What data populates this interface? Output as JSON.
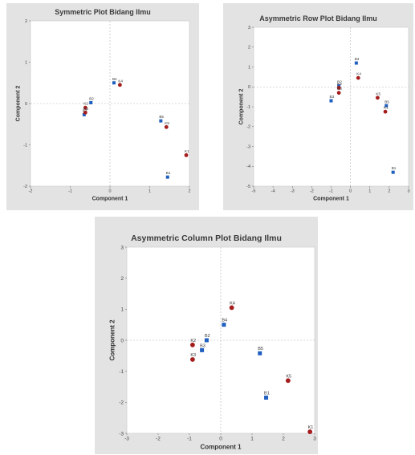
{
  "colors": {
    "row_marker": "#1f5fbf",
    "col_marker": "#a51c1c",
    "panel_bg": "#e3e3e3",
    "plot_bg": "#ffffff",
    "refline": "#b5b5b5"
  },
  "chart_data": [
    {
      "type": "scatter",
      "title": "Symmetric Plot Bidang Ilmu",
      "xlabel": "Component 1",
      "ylabel": "Component 2",
      "xlim": [
        -2,
        2
      ],
      "ylim": [
        -2,
        2
      ],
      "xticks": [
        "-2",
        "-1",
        "0",
        "1",
        "2"
      ],
      "yticks": [
        "-2",
        "-1",
        "0",
        "1",
        "2"
      ],
      "grid": false,
      "series": [
        {
          "marker": "square",
          "color": "#1f5fbf",
          "points": [
            {
              "label": "B1",
              "x": 1.45,
              "y": -1.78
            },
            {
              "label": "B2",
              "x": -0.48,
              "y": 0.02
            },
            {
              "label": "B3",
              "x": -0.65,
              "y": -0.27
            },
            {
              "label": "B4",
              "x": 0.1,
              "y": 0.5
            },
            {
              "label": "B5",
              "x": 1.28,
              "y": -0.42
            }
          ]
        },
        {
          "marker": "circle",
          "color": "#a51c1c",
          "points": [
            {
              "label": "K1",
              "x": 1.92,
              "y": -1.25
            },
            {
              "label": "K2",
              "x": -0.62,
              "y": -0.1
            },
            {
              "label": "K3",
              "x": -0.62,
              "y": -0.22
            },
            {
              "label": "K4",
              "x": 0.25,
              "y": 0.45
            },
            {
              "label": "K5",
              "x": 1.42,
              "y": -0.57
            }
          ]
        }
      ]
    },
    {
      "type": "scatter",
      "title": "Asymmetric Row Plot Bidang Ilmu",
      "xlabel": "Component 1",
      "ylabel": "Component 2",
      "xlim": [
        -5,
        3
      ],
      "ylim": [
        -5,
        3
      ],
      "xticks": [
        "-5",
        "-4",
        "-3",
        "-2",
        "-1",
        "0",
        "1",
        "2",
        "3"
      ],
      "yticks": [
        "-5",
        "-4",
        "-3",
        "-2",
        "-1",
        "0",
        "1",
        "2",
        "3"
      ],
      "grid": false,
      "series": [
        {
          "marker": "square",
          "color": "#1f5fbf",
          "points": [
            {
              "label": "B1",
              "x": 2.2,
              "y": -4.3
            },
            {
              "label": "B2",
              "x": -0.6,
              "y": 0.05
            },
            {
              "label": "B3",
              "x": -1.0,
              "y": -0.7
            },
            {
              "label": "B4",
              "x": 0.3,
              "y": 1.2
            },
            {
              "label": "B5",
              "x": 1.85,
              "y": -0.95
            }
          ]
        },
        {
          "marker": "circle",
          "color": "#a51c1c",
          "points": [
            {
              "label": "K1",
              "x": 1.8,
              "y": -1.25
            },
            {
              "label": "K2",
              "x": -0.6,
              "y": -0.05
            },
            {
              "label": "K3",
              "x": -0.6,
              "y": -0.3
            },
            {
              "label": "K4",
              "x": 0.4,
              "y": 0.45
            },
            {
              "label": "K5",
              "x": 1.4,
              "y": -0.55
            }
          ]
        }
      ]
    },
    {
      "type": "scatter",
      "title": "Asymmetric Column Plot Bidang Ilmu",
      "xlabel": "Component 1",
      "ylabel": "Component 2",
      "xlim": [
        -3,
        3
      ],
      "ylim": [
        -3,
        3
      ],
      "xticks": [
        "-3",
        "-2",
        "-1",
        "0",
        "1",
        "2",
        "3"
      ],
      "yticks": [
        "-3",
        "-2",
        "-1",
        "0",
        "1",
        "2",
        "3"
      ],
      "grid": false,
      "series": [
        {
          "marker": "square",
          "color": "#1f5fbf",
          "points": [
            {
              "label": "B1",
              "x": 1.45,
              "y": -1.85
            },
            {
              "label": "B2",
              "x": -0.45,
              "y": 0.0
            },
            {
              "label": "B3",
              "x": -0.6,
              "y": -0.32
            },
            {
              "label": "B4",
              "x": 0.1,
              "y": 0.5
            },
            {
              "label": "B5",
              "x": 1.25,
              "y": -0.42
            }
          ]
        },
        {
          "marker": "circle",
          "color": "#a51c1c",
          "points": [
            {
              "label": "K1",
              "x": 2.85,
              "y": -2.95
            },
            {
              "label": "K2",
              "x": -0.9,
              "y": -0.15
            },
            {
              "label": "K3",
              "x": -0.9,
              "y": -0.62
            },
            {
              "label": "K4",
              "x": 0.35,
              "y": 1.05
            },
            {
              "label": "K5",
              "x": 2.15,
              "y": -1.3
            }
          ]
        }
      ]
    }
  ]
}
